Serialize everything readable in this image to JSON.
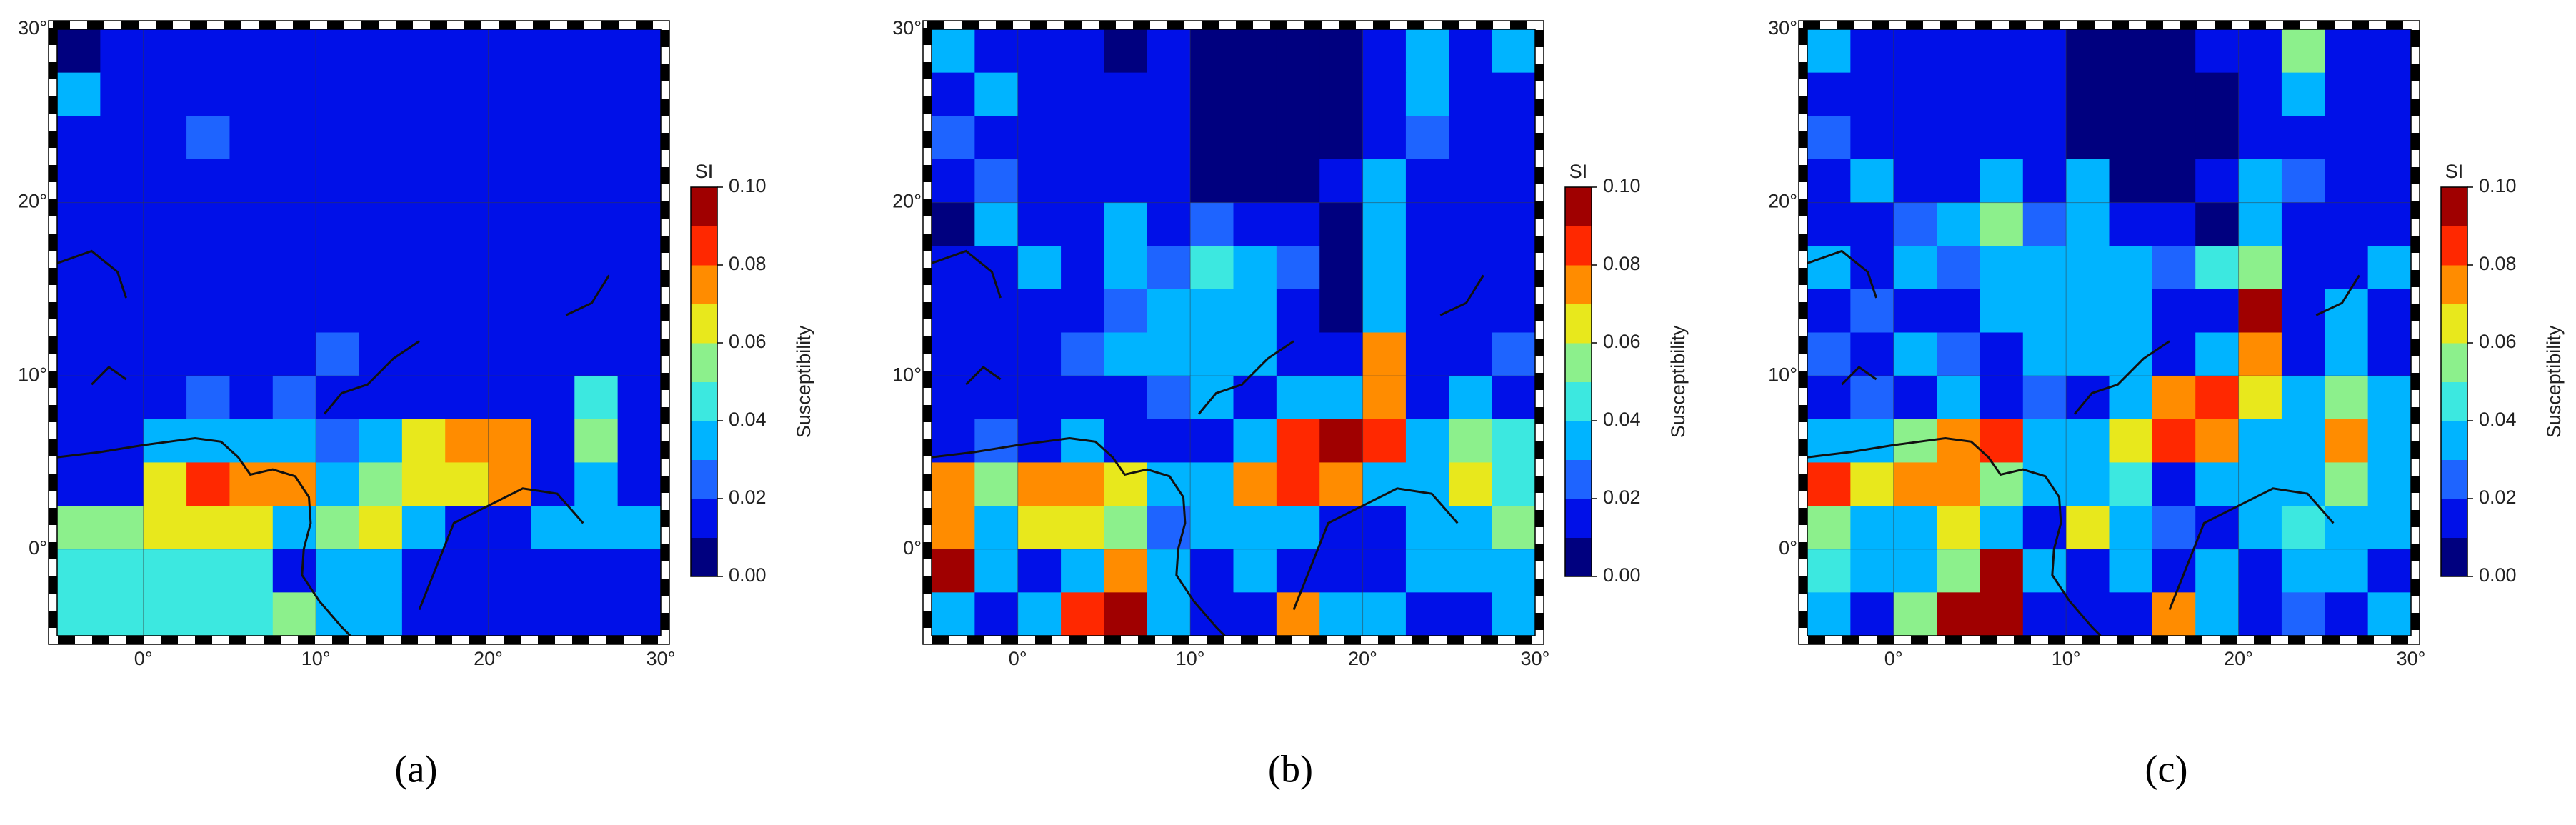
{
  "chart_data": [
    {
      "type": "heatmap",
      "caption": "(a)",
      "colorbar_title": "SI",
      "colorbar_label": "Susceptibility",
      "xlim": [
        -5,
        30
      ],
      "ylim": [
        -5,
        30
      ],
      "xticks": [
        {
          "value": 0,
          "label": "0°"
        },
        {
          "value": 10,
          "label": "10°"
        },
        {
          "value": 20,
          "label": "20°"
        },
        {
          "value": 30,
          "label": "30°"
        }
      ],
      "yticks": [
        {
          "value": 0,
          "label": "0°"
        },
        {
          "value": 10,
          "label": "10°"
        },
        {
          "value": 20,
          "label": "20°"
        },
        {
          "value": 30,
          "label": "30°"
        }
      ],
      "clim": [
        0,
        0.1
      ],
      "cticks": [
        {
          "value": 0,
          "label": "0.00"
        },
        {
          "value": 0.02,
          "label": "0.02"
        },
        {
          "value": 0.04,
          "label": "0.04"
        },
        {
          "value": 0.06,
          "label": "0.06"
        },
        {
          "value": 0.08,
          "label": "0.08"
        },
        {
          "value": 0.1,
          "label": "0.10"
        }
      ],
      "colors": [
        "#00007f",
        "#0010e8",
        "#1e64ff",
        "#00b4ff",
        "#3ce8e0",
        "#8cf08c",
        "#e8e81c",
        "#ff8c00",
        "#ff2800",
        "#a00000"
      ],
      "grid": true,
      "values": [
        [
          0.01,
          0.015,
          0.015,
          0.015,
          0.015,
          0.015,
          0.015,
          0.015,
          0.015,
          0.015,
          0.015,
          0.015,
          0.015,
          0.015
        ],
        [
          0.03,
          0.015,
          0.015,
          0.015,
          0.015,
          0.015,
          0.015,
          0.015,
          0.015,
          0.015,
          0.015,
          0.015,
          0.015,
          0.015
        ],
        [
          0.015,
          0.015,
          0.015,
          0.025,
          0.015,
          0.015,
          0.015,
          0.015,
          0.015,
          0.015,
          0.015,
          0.015,
          0.015,
          0.015
        ],
        [
          0.015,
          0.015,
          0.015,
          0.015,
          0.015,
          0.015,
          0.015,
          0.015,
          0.015,
          0.015,
          0.015,
          0.015,
          0.015,
          0.015
        ],
        [
          0.02,
          0.015,
          0.015,
          0.015,
          0.015,
          0.015,
          0.015,
          0.015,
          0.015,
          0.015,
          0.015,
          0.015,
          0.015,
          0.015
        ],
        [
          0.015,
          0.015,
          0.015,
          0.015,
          0.015,
          0.015,
          0.015,
          0.015,
          0.015,
          0.015,
          0.015,
          0.015,
          0.015,
          0.015
        ],
        [
          0.015,
          0.015,
          0.015,
          0.015,
          0.015,
          0.015,
          0.02,
          0.015,
          0.015,
          0.015,
          0.015,
          0.015,
          0.015,
          0.015
        ],
        [
          0.015,
          0.015,
          0.015,
          0.015,
          0.015,
          0.02,
          0.025,
          0.02,
          0.015,
          0.015,
          0.015,
          0.015,
          0.015,
          0.015
        ],
        [
          0.015,
          0.02,
          0.02,
          0.025,
          0.02,
          0.025,
          0.02,
          0.02,
          0.015,
          0.015,
          0.015,
          0.015,
          0.045,
          0.015
        ],
        [
          0.02,
          0.02,
          0.03,
          0.035,
          0.035,
          0.03,
          0.025,
          0.035,
          0.06,
          0.07,
          0.08,
          0.02,
          0.05,
          0.02
        ],
        [
          0.02,
          0.02,
          0.06,
          0.085,
          0.08,
          0.07,
          0.03,
          0.055,
          0.06,
          0.06,
          0.07,
          0.02,
          0.03,
          0.02
        ],
        [
          0.05,
          0.05,
          0.06,
          0.06,
          0.06,
          0.035,
          0.055,
          0.06,
          0.03,
          0.02,
          0.02,
          0.04,
          0.035,
          0.035
        ],
        [
          0.045,
          0.045,
          0.045,
          0.045,
          0.045,
          0.02,
          0.03,
          0.04,
          0.02,
          0.02,
          0.015,
          0.02,
          0.02,
          0.02
        ],
        [
          0.045,
          0.045,
          0.045,
          0.045,
          0.045,
          0.05,
          0.03,
          0.04,
          0.02,
          0.02,
          0.02,
          0.02,
          0.02,
          0.02
        ]
      ]
    },
    {
      "type": "heatmap",
      "caption": "(b)",
      "colorbar_title": "SI",
      "colorbar_label": "Susceptibility",
      "xlim": [
        -5,
        30
      ],
      "ylim": [
        -5,
        30
      ],
      "xticks": [
        {
          "value": 0,
          "label": "0°"
        },
        {
          "value": 10,
          "label": "10°"
        },
        {
          "value": 20,
          "label": "20°"
        },
        {
          "value": 30,
          "label": "30°"
        }
      ],
      "yticks": [
        {
          "value": 0,
          "label": "0°"
        },
        {
          "value": 10,
          "label": "10°"
        },
        {
          "value": 20,
          "label": "20°"
        },
        {
          "value": 30,
          "label": "30°"
        }
      ],
      "clim": [
        0,
        0.1
      ],
      "cticks": [
        {
          "value": 0,
          "label": "0.00"
        },
        {
          "value": 0.02,
          "label": "0.02"
        },
        {
          "value": 0.04,
          "label": "0.04"
        },
        {
          "value": 0.06,
          "label": "0.06"
        },
        {
          "value": 0.08,
          "label": "0.08"
        },
        {
          "value": 0.1,
          "label": "0.10"
        }
      ],
      "colors": [
        "#00007f",
        "#0010e8",
        "#1e64ff",
        "#00b4ff",
        "#3ce8e0",
        "#8cf08c",
        "#e8e81c",
        "#ff8c00",
        "#ff2800",
        "#a00000"
      ],
      "grid": true,
      "values": [
        [
          0.04,
          0.02,
          0.02,
          0.015,
          0.01,
          0.02,
          0.01,
          0.01,
          0.01,
          0.01,
          0.02,
          0.035,
          0.02,
          0.03
        ],
        [
          0.015,
          0.03,
          0.02,
          0.02,
          0.015,
          0.02,
          0.01,
          0.005,
          0.01,
          0.01,
          0.015,
          0.03,
          0.015,
          0.02
        ],
        [
          0.025,
          0.02,
          0.015,
          0.02,
          0.02,
          0.015,
          0.01,
          0.01,
          0.01,
          0.01,
          0.02,
          0.025,
          0.015,
          0.02
        ],
        [
          0.02,
          0.025,
          0.015,
          0.02,
          0.015,
          0.02,
          0.01,
          0.01,
          0.01,
          0.02,
          0.03,
          0.02,
          0.015,
          0.02
        ],
        [
          0.01,
          0.03,
          0.015,
          0.02,
          0.035,
          0.015,
          0.025,
          0.015,
          0.02,
          0.01,
          0.03,
          0.02,
          0.02,
          0.015
        ],
        [
          0.015,
          0.02,
          0.03,
          0.02,
          0.03,
          0.025,
          0.045,
          0.03,
          0.025,
          0.01,
          0.035,
          0.015,
          0.02,
          0.02
        ],
        [
          0.02,
          0.02,
          0.02,
          0.02,
          0.025,
          0.03,
          0.04,
          0.035,
          0.02,
          0.01,
          0.03,
          0.02,
          0.015,
          0.02
        ],
        [
          0.02,
          0.015,
          0.02,
          0.025,
          0.03,
          0.03,
          0.035,
          0.04,
          0.02,
          0.02,
          0.07,
          0.02,
          0.02,
          0.025
        ],
        [
          0.02,
          0.02,
          0.02,
          0.015,
          0.02,
          0.025,
          0.03,
          0.02,
          0.035,
          0.03,
          0.075,
          0.02,
          0.03,
          0.02
        ],
        [
          0.02,
          0.025,
          0.015,
          0.03,
          0.02,
          0.02,
          0.02,
          0.03,
          0.085,
          0.09,
          0.085,
          0.03,
          0.05,
          0.045
        ],
        [
          0.07,
          0.05,
          0.07,
          0.075,
          0.06,
          0.04,
          0.04,
          0.075,
          0.085,
          0.08,
          0.03,
          0.035,
          0.06,
          0.045
        ],
        [
          0.08,
          0.03,
          0.06,
          0.06,
          0.05,
          0.025,
          0.035,
          0.03,
          0.03,
          0.02,
          0.02,
          0.035,
          0.04,
          0.05
        ],
        [
          0.09,
          0.04,
          0.02,
          0.03,
          0.07,
          0.035,
          0.02,
          0.04,
          0.02,
          0.02,
          0.02,
          0.03,
          0.035,
          0.03
        ],
        [
          0.03,
          0.02,
          0.035,
          0.085,
          0.09,
          0.03,
          0.02,
          0.015,
          0.07,
          0.035,
          0.03,
          0.02,
          0.02,
          0.03
        ]
      ]
    },
    {
      "type": "heatmap",
      "caption": "(c)",
      "colorbar_title": "SI",
      "colorbar_label": "Susceptibility",
      "xlim": [
        -5,
        30
      ],
      "ylim": [
        -5,
        30
      ],
      "xticks": [
        {
          "value": 0,
          "label": "0°"
        },
        {
          "value": 10,
          "label": "10°"
        },
        {
          "value": 20,
          "label": "20°"
        },
        {
          "value": 30,
          "label": "30°"
        }
      ],
      "yticks": [
        {
          "value": 0,
          "label": "0°"
        },
        {
          "value": 10,
          "label": "10°"
        },
        {
          "value": 20,
          "label": "20°"
        },
        {
          "value": 30,
          "label": "30°"
        }
      ],
      "clim": [
        0,
        0.1
      ],
      "cticks": [
        {
          "value": 0,
          "label": "0.00"
        },
        {
          "value": 0.02,
          "label": "0.02"
        },
        {
          "value": 0.04,
          "label": "0.04"
        },
        {
          "value": 0.06,
          "label": "0.06"
        },
        {
          "value": 0.08,
          "label": "0.08"
        },
        {
          "value": 0.1,
          "label": "0.10"
        }
      ],
      "colors": [
        "#00007f",
        "#0010e8",
        "#1e64ff",
        "#00b4ff",
        "#3ce8e0",
        "#8cf08c",
        "#e8e81c",
        "#ff8c00",
        "#ff2800",
        "#a00000"
      ],
      "grid": true,
      "values": [
        [
          0.04,
          0.02,
          0.02,
          0.015,
          0.02,
          0.015,
          0.01,
          0.01,
          0.01,
          0.015,
          0.02,
          0.05,
          0.02,
          0.015
        ],
        [
          0.02,
          0.02,
          0.015,
          0.02,
          0.015,
          0.02,
          0.01,
          0.005,
          0.01,
          0.01,
          0.02,
          0.03,
          0.015,
          0.02
        ],
        [
          0.025,
          0.015,
          0.02,
          0.015,
          0.02,
          0.015,
          0.01,
          0.01,
          0.005,
          0.01,
          0.015,
          0.02,
          0.015,
          0.02
        ],
        [
          0.02,
          0.03,
          0.02,
          0.015,
          0.04,
          0.02,
          0.035,
          0.01,
          0.01,
          0.02,
          0.03,
          0.025,
          0.02,
          0.015
        ],
        [
          0.015,
          0.02,
          0.025,
          0.03,
          0.05,
          0.025,
          0.04,
          0.02,
          0.02,
          0.01,
          0.035,
          0.02,
          0.015,
          0.02
        ],
        [
          0.03,
          0.02,
          0.03,
          0.025,
          0.035,
          0.03,
          0.04,
          0.03,
          0.025,
          0.045,
          0.05,
          0.02,
          0.02,
          0.03
        ],
        [
          0.02,
          0.025,
          0.02,
          0.02,
          0.03,
          0.03,
          0.035,
          0.04,
          0.02,
          0.015,
          0.09,
          0.02,
          0.03,
          0.02
        ],
        [
          0.025,
          0.02,
          0.03,
          0.025,
          0.02,
          0.03,
          0.03,
          0.035,
          0.02,
          0.04,
          0.07,
          0.02,
          0.03,
          0.02
        ],
        [
          0.02,
          0.025,
          0.015,
          0.03,
          0.02,
          0.025,
          0.02,
          0.04,
          0.07,
          0.085,
          0.06,
          0.035,
          0.05,
          0.04
        ],
        [
          0.03,
          0.04,
          0.05,
          0.08,
          0.085,
          0.04,
          0.03,
          0.06,
          0.085,
          0.08,
          0.035,
          0.04,
          0.07,
          0.04
        ],
        [
          0.085,
          0.06,
          0.07,
          0.08,
          0.05,
          0.04,
          0.035,
          0.045,
          0.02,
          0.03,
          0.03,
          0.04,
          0.05,
          0.03
        ],
        [
          0.05,
          0.035,
          0.04,
          0.06,
          0.03,
          0.02,
          0.06,
          0.03,
          0.025,
          0.02,
          0.035,
          0.045,
          0.04,
          0.03
        ],
        [
          0.045,
          0.04,
          0.035,
          0.05,
          0.09,
          0.035,
          0.02,
          0.03,
          0.015,
          0.03,
          0.02,
          0.04,
          0.03,
          0.02
        ],
        [
          0.03,
          0.02,
          0.05,
          0.09,
          0.09,
          0.02,
          0.015,
          0.02,
          0.08,
          0.04,
          0.02,
          0.025,
          0.02,
          0.04
        ]
      ]
    }
  ]
}
